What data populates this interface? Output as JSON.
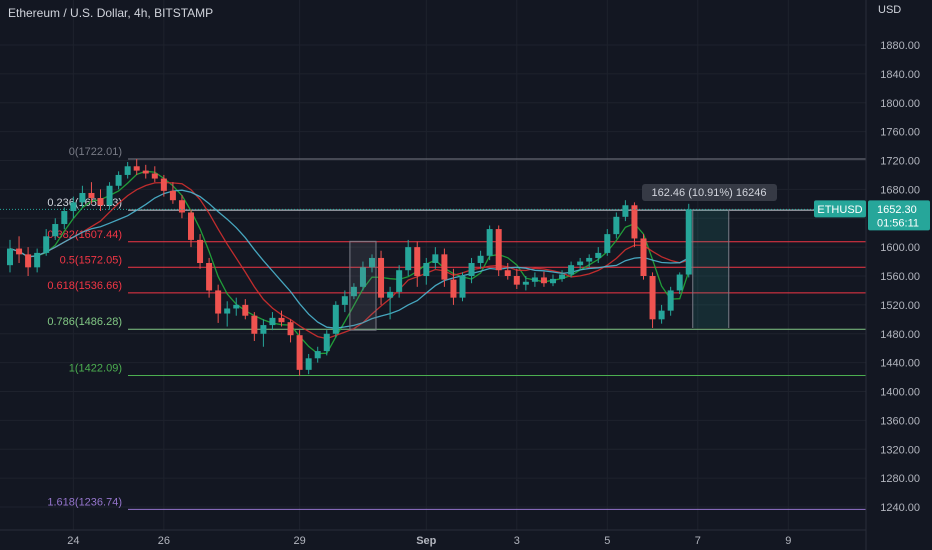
{
  "header": {
    "title": "Ethereum / U.S. Dollar, 4h, BITSTAMP",
    "currency": "USD"
  },
  "price_tag": {
    "symbol": "ETHUSD",
    "price": "1652.30",
    "countdown": "01:56:11"
  },
  "measure": {
    "label": "162.46 (10.91%) 16246"
  },
  "colors": {
    "background": "#131722",
    "up": "#26a69a",
    "down": "#ef5350",
    "grid": "#1e222d",
    "axis_text": "#b2b5be"
  },
  "chart_data": {
    "type": "candlestick",
    "title": "Ethereum / U.S. Dollar, 4h, BITSTAMP",
    "ylabel": "USD",
    "ylim": [
      1215,
      1910
    ],
    "y_ticks": [
      "1880.00",
      "1840.00",
      "1800.00",
      "1760.00",
      "1720.00",
      "1680.00",
      "1640.00",
      "1600.00",
      "1560.00",
      "1520.00",
      "1480.00",
      "1440.00",
      "1400.00",
      "1360.00",
      "1320.00",
      "1280.00",
      "1240.00"
    ],
    "x_ticks": [
      {
        "label": "24",
        "index": 7
      },
      {
        "label": "26",
        "index": 17
      },
      {
        "label": "29",
        "index": 32
      },
      {
        "label": "Sep",
        "index": 46
      },
      {
        "label": "3",
        "index": 56
      },
      {
        "label": "5",
        "index": 66
      },
      {
        "label": "7",
        "index": 76
      },
      {
        "label": "9",
        "index": 86
      }
    ],
    "fib_levels": [
      {
        "label": "0(1722.01)",
        "value": 1722.01,
        "color": "#787b86"
      },
      {
        "label": "0.236(1651.23)",
        "value": 1651.23,
        "color": "#d1d4dc"
      },
      {
        "label": "0.382(1607.44)",
        "value": 1607.44,
        "color": "#f23645"
      },
      {
        "label": "0.5(1572.05)",
        "value": 1572.05,
        "color": "#f23645"
      },
      {
        "label": "0.618(1536.66)",
        "value": 1536.66,
        "color": "#f23645"
      },
      {
        "label": "0.786(1486.28)",
        "value": 1486.28,
        "color": "#81c784"
      },
      {
        "label": "1(1422.09)",
        "value": 1422.09,
        "color": "#4caf50"
      },
      {
        "label": "1.618(1236.74)",
        "value": 1236.74,
        "color": "#9575cd"
      }
    ],
    "last_price": 1652.3,
    "candles": [
      [
        1575,
        1610,
        1565,
        1598
      ],
      [
        1598,
        1615,
        1578,
        1590
      ],
      [
        1590,
        1600,
        1560,
        1572
      ],
      [
        1572,
        1598,
        1565,
        1592
      ],
      [
        1592,
        1625,
        1588,
        1615
      ],
      [
        1615,
        1640,
        1610,
        1632
      ],
      [
        1632,
        1655,
        1625,
        1650
      ],
      [
        1650,
        1670,
        1640,
        1662
      ],
      [
        1662,
        1685,
        1655,
        1675
      ],
      [
        1675,
        1690,
        1660,
        1668
      ],
      [
        1668,
        1680,
        1650,
        1658
      ],
      [
        1658,
        1690,
        1652,
        1685
      ],
      [
        1685,
        1705,
        1680,
        1700
      ],
      [
        1700,
        1718,
        1695,
        1712
      ],
      [
        1712,
        1722,
        1700,
        1706
      ],
      [
        1706,
        1714,
        1695,
        1702
      ],
      [
        1702,
        1712,
        1690,
        1695
      ],
      [
        1695,
        1700,
        1670,
        1678
      ],
      [
        1678,
        1690,
        1660,
        1665
      ],
      [
        1665,
        1672,
        1640,
        1648
      ],
      [
        1648,
        1652,
        1600,
        1610
      ],
      [
        1610,
        1618,
        1570,
        1578
      ],
      [
        1578,
        1585,
        1530,
        1540
      ],
      [
        1540,
        1548,
        1495,
        1508
      ],
      [
        1508,
        1525,
        1490,
        1515
      ],
      [
        1515,
        1530,
        1505,
        1520
      ],
      [
        1520,
        1528,
        1500,
        1505
      ],
      [
        1505,
        1510,
        1470,
        1480
      ],
      [
        1480,
        1500,
        1462,
        1492
      ],
      [
        1492,
        1510,
        1485,
        1502
      ],
      [
        1502,
        1512,
        1490,
        1496
      ],
      [
        1496,
        1500,
        1468,
        1478
      ],
      [
        1478,
        1485,
        1422,
        1430
      ],
      [
        1430,
        1452,
        1424,
        1446
      ],
      [
        1446,
        1462,
        1440,
        1456
      ],
      [
        1456,
        1485,
        1450,
        1480
      ],
      [
        1480,
        1525,
        1475,
        1520
      ],
      [
        1520,
        1540,
        1510,
        1532
      ],
      [
        1532,
        1550,
        1528,
        1545
      ],
      [
        1545,
        1580,
        1540,
        1572
      ],
      [
        1572,
        1590,
        1565,
        1585
      ],
      [
        1585,
        1595,
        1520,
        1530
      ],
      [
        1530,
        1545,
        1500,
        1538
      ],
      [
        1538,
        1575,
        1530,
        1568
      ],
      [
        1568,
        1610,
        1560,
        1600
      ],
      [
        1600,
        1608,
        1545,
        1560
      ],
      [
        1560,
        1585,
        1548,
        1578
      ],
      [
        1578,
        1600,
        1570,
        1590
      ],
      [
        1590,
        1598,
        1545,
        1555
      ],
      [
        1555,
        1570,
        1520,
        1530
      ],
      [
        1530,
        1565,
        1525,
        1560
      ],
      [
        1560,
        1585,
        1550,
        1578
      ],
      [
        1578,
        1595,
        1570,
        1588
      ],
      [
        1588,
        1630,
        1582,
        1625
      ],
      [
        1625,
        1630,
        1560,
        1568
      ],
      [
        1568,
        1578,
        1555,
        1560
      ],
      [
        1560,
        1570,
        1542,
        1548
      ],
      [
        1548,
        1560,
        1540,
        1552
      ],
      [
        1552,
        1565,
        1545,
        1558
      ],
      [
        1558,
        1566,
        1545,
        1550
      ],
      [
        1550,
        1562,
        1546,
        1556
      ],
      [
        1556,
        1568,
        1552,
        1562
      ],
      [
        1562,
        1580,
        1558,
        1575
      ],
      [
        1575,
        1585,
        1568,
        1580
      ],
      [
        1580,
        1590,
        1572,
        1585
      ],
      [
        1585,
        1600,
        1578,
        1592
      ],
      [
        1592,
        1625,
        1588,
        1618
      ],
      [
        1618,
        1648,
        1612,
        1642
      ],
      [
        1642,
        1665,
        1636,
        1658
      ],
      [
        1658,
        1662,
        1600,
        1612
      ],
      [
        1612,
        1618,
        1555,
        1560
      ],
      [
        1560,
        1565,
        1488,
        1500
      ],
      [
        1500,
        1520,
        1494,
        1512
      ],
      [
        1512,
        1545,
        1505,
        1540
      ],
      [
        1540,
        1565,
        1535,
        1562
      ],
      [
        1562,
        1660,
        1558,
        1652.3
      ]
    ]
  }
}
